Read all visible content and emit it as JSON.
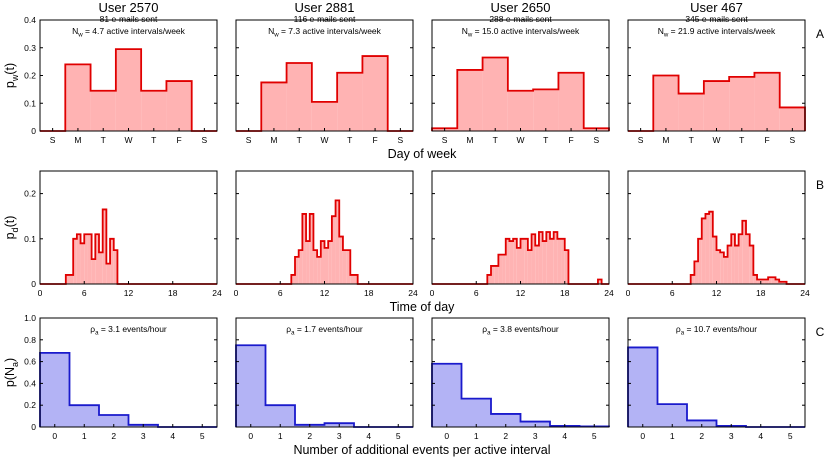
{
  "users": [
    {
      "title": "User 2570",
      "subtitle": "81 e-mails sent"
    },
    {
      "title": "User 2881",
      "subtitle": "116 e-mails sent"
    },
    {
      "title": "User 2650",
      "subtitle": "288 e-mails sent"
    },
    {
      "title": "User 467",
      "subtitle": "345 e-mails sent"
    }
  ],
  "colors": {
    "red_fill": "#ffb3b3",
    "red_line": "#e00000",
    "blue_fill": "#b3b3f5",
    "blue_line": "#1a1acc",
    "annot_red": "#e00000",
    "annot_blue": "#2222dd"
  },
  "chart_data": [
    {
      "id": "row-A",
      "panel_label": "A",
      "type": "bar",
      "ylabel_main": "p",
      "ylabel_sub": "w",
      "ylabel_arg": "(t)",
      "xlabel": "Day of week",
      "categories": [
        "S",
        "M",
        "T",
        "W",
        "T",
        "F",
        "S"
      ],
      "ylim": [
        0,
        0.4
      ],
      "yticks": [
        "0",
        "0.1",
        "0.2",
        "0.3",
        "0.4"
      ],
      "annotations": [
        {
          "main": "N",
          "sub": "w",
          "rest": " = 4.7 active intervals/week"
        },
        {
          "main": "N",
          "sub": "w",
          "rest": " = 7.3 active intervals/week"
        },
        {
          "main": "N",
          "sub": "w",
          "rest": " = 15.0 active intervals/week"
        },
        {
          "main": "N",
          "sub": "w",
          "rest": " = 21.9 active intervals/week"
        }
      ],
      "series": [
        {
          "values": [
            0,
            0.24,
            0.145,
            0.295,
            0.145,
            0.18,
            0
          ]
        },
        {
          "values": [
            0,
            0.175,
            0.245,
            0.105,
            0.21,
            0.27,
            0
          ]
        },
        {
          "values": [
            0.01,
            0.22,
            0.265,
            0.145,
            0.15,
            0.21,
            0.01
          ]
        },
        {
          "values": [
            0,
            0.2,
            0.135,
            0.18,
            0.195,
            0.21,
            0.085
          ]
        }
      ]
    },
    {
      "id": "row-B",
      "panel_label": "B",
      "type": "bar",
      "ylabel_main": "p",
      "ylabel_sub": "d",
      "ylabel_arg": "(t)",
      "xlabel": "Time of day",
      "xlim": [
        0,
        24
      ],
      "xticks": [
        "0",
        "6",
        "12",
        "18",
        "24"
      ],
      "ylim": [
        0,
        0.25
      ],
      "yticks": [
        "0",
        "0.1",
        "0.2"
      ],
      "series": [
        {
          "values": [
            0,
            0,
            0,
            0,
            0,
            0,
            0,
            0.02,
            0.02,
            0.1,
            0.11,
            0.09,
            0.11,
            0.11,
            0.055,
            0.11,
            0.07,
            0.165,
            0.045,
            0.1,
            0.075,
            0,
            0,
            0,
            0,
            0,
            0,
            0,
            0,
            0,
            0,
            0,
            0,
            0,
            0,
            0,
            0,
            0,
            0,
            0,
            0,
            0,
            0,
            0,
            0,
            0,
            0,
            0
          ]
        },
        {
          "values": [
            0,
            0,
            0,
            0,
            0,
            0,
            0,
            0,
            0,
            0,
            0,
            0,
            0,
            0,
            0,
            0.02,
            0.06,
            0.075,
            0.155,
            0.095,
            0.155,
            0.075,
            0.06,
            0.095,
            0.08,
            0.095,
            0.15,
            0.185,
            0.105,
            0.075,
            0.075,
            0.02,
            0.02,
            0,
            0,
            0,
            0,
            0,
            0,
            0,
            0,
            0,
            0,
            0,
            0,
            0,
            0,
            0
          ]
        },
        {
          "values": [
            0,
            0,
            0,
            0,
            0,
            0,
            0,
            0,
            0,
            0,
            0,
            0,
            0,
            0,
            0,
            0.02,
            0.04,
            0.04,
            0.065,
            0.065,
            0.1,
            0.095,
            0.1,
            0.08,
            0.1,
            0.1,
            0.075,
            0.11,
            0.085,
            0.115,
            0.095,
            0.115,
            0.1,
            0.115,
            0.1,
            0.1,
            0.075,
            0,
            0,
            0,
            0,
            0,
            0,
            0,
            0,
            0.01,
            0,
            0
          ]
        },
        {
          "values": [
            0,
            0,
            0,
            0,
            0,
            0,
            0,
            0,
            0,
            0,
            0,
            0,
            0,
            0,
            0,
            0,
            0,
            0.02,
            0.05,
            0.1,
            0.145,
            0.155,
            0.16,
            0.105,
            0.075,
            0.07,
            0.06,
            0.085,
            0.11,
            0.085,
            0.11,
            0.14,
            0.11,
            0.085,
            0.02,
            0.01,
            0.01,
            0.01,
            0.015,
            0.015,
            0.01,
            0.005,
            0.005,
            0,
            0,
            0,
            0,
            0
          ]
        }
      ]
    },
    {
      "id": "row-C",
      "panel_label": "C",
      "type": "bar",
      "ylabel_main": "p(N",
      "ylabel_sub": "a",
      "ylabel_arg": ")",
      "xlabel": "Number of additional events per active interval",
      "categories": [
        "0",
        "1",
        "2",
        "3",
        "4",
        "5"
      ],
      "ylim": [
        0,
        1.0
      ],
      "yticks": [
        "0",
        "0.2",
        "0.4",
        "0.6",
        "0.8",
        "1.0"
      ],
      "annotations": [
        {
          "main": "ρ",
          "sub": "a",
          "rest": " = 3.1 events/hour"
        },
        {
          "main": "ρ",
          "sub": "a",
          "rest": " = 1.7 events/hour"
        },
        {
          "main": "ρ",
          "sub": "a",
          "rest": " = 3.8 events/hour"
        },
        {
          "main": "ρ",
          "sub": "a",
          "rest": " = 10.7 events/hour"
        }
      ],
      "series": [
        {
          "values": [
            0.68,
            0.2,
            0.11,
            0.02,
            0,
            0
          ]
        },
        {
          "values": [
            0.75,
            0.2,
            0.02,
            0.035,
            0,
            0
          ]
        },
        {
          "values": [
            0.58,
            0.26,
            0.12,
            0.05,
            0.01,
            0.005
          ]
        },
        {
          "values": [
            0.73,
            0.21,
            0.06,
            0.01,
            0,
            0
          ]
        }
      ]
    }
  ]
}
